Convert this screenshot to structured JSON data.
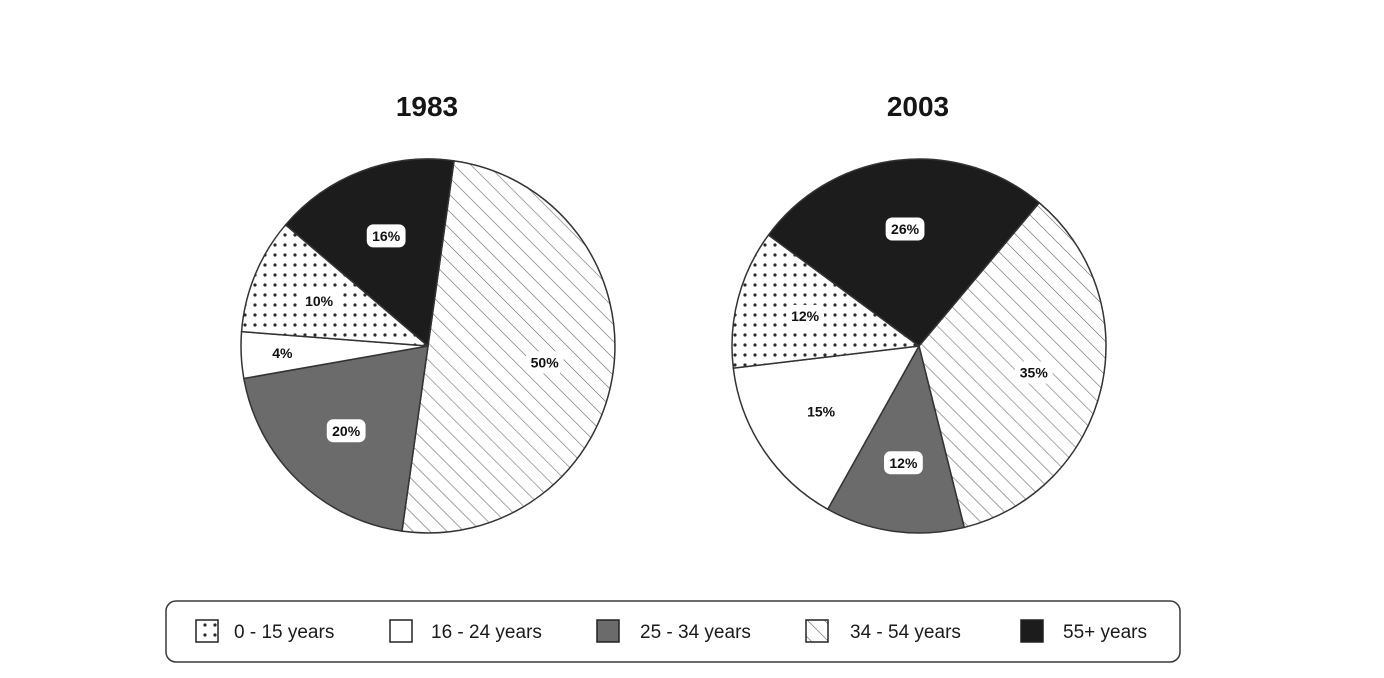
{
  "chart_data": [
    {
      "type": "pie",
      "title": "1983",
      "categories": [
        "0 - 15 years",
        "16 - 24 years",
        "25 - 34 years",
        "34 - 54 years",
        "55+ years"
      ],
      "values": [
        10,
        4,
        20,
        50,
        16
      ],
      "labels": [
        "10%",
        "4%",
        "20%",
        "50%",
        "16%"
      ]
    },
    {
      "type": "pie",
      "title": "2003",
      "categories": [
        "0 - 15 years",
        "16 - 24 years",
        "25 - 34 years",
        "34 - 54 years",
        "55+ years"
      ],
      "values": [
        12,
        15,
        12,
        35,
        26
      ],
      "labels": [
        "12%",
        "15%",
        "12%",
        "35%",
        "26%"
      ]
    }
  ],
  "legend": {
    "placement": "bottom",
    "items": [
      {
        "label": "0 - 15 years",
        "pattern": "dots"
      },
      {
        "label": "16 - 24 years",
        "pattern": "white"
      },
      {
        "label": "25 - 34 years",
        "pattern": "gray"
      },
      {
        "label": "34 - 54 years",
        "pattern": "hatch"
      },
      {
        "label": "55+ years",
        "pattern": "black"
      }
    ]
  },
  "colors": {
    "black": "#1c1c1c",
    "gray": "#6b6b6b",
    "white": "#ffffff",
    "stroke": "#333333",
    "hatch_line": "#6a6a6a",
    "dot": "#2a2a2a"
  }
}
